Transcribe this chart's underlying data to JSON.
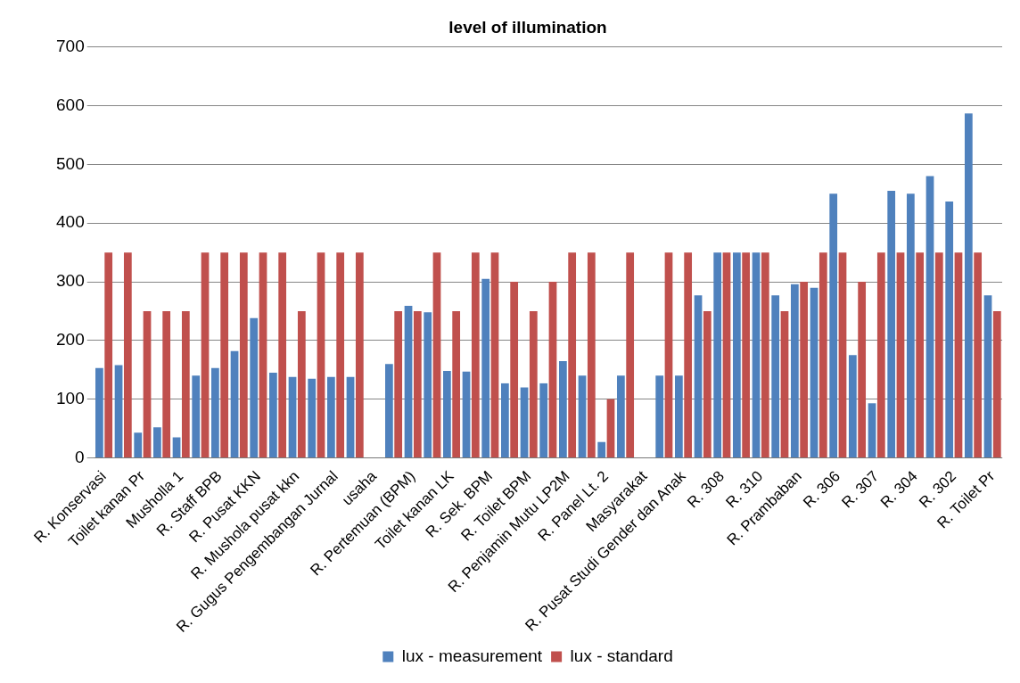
{
  "chart_data": {
    "type": "bar",
    "title": "level of illumination",
    "categories": [
      "R. Konservasi",
      null,
      "Toilet kanan Pr",
      null,
      "Musholla 1",
      null,
      "R. Staff BPB",
      null,
      "R. Pusat KKN",
      null,
      "R. Mushola pusat kkn",
      null,
      "R. Gugus Pengembangan Jurnal",
      null,
      "usaha",
      null,
      "R. Pertemuan (BPM)",
      null,
      "Toilet kanan LK",
      null,
      "R. Sek. BPM",
      null,
      "R. Toilet BPM",
      null,
      "R. Penjamin Mutu LP2M",
      null,
      "R. Panel Lt. 2",
      null,
      "Masyarakat",
      null,
      "R. Pusat Studi Gender dan Anak",
      null,
      "R. 308",
      null,
      "R. 310",
      null,
      "R. Prambaban",
      null,
      "R. 306",
      null,
      "R. 307",
      null,
      "R. 304",
      null,
      "R. 302",
      null,
      "R. Toilet Pr"
    ],
    "series": [
      {
        "name": "lux - measurement",
        "color": "#4f81bd",
        "values": [
          153,
          158,
          43,
          52,
          35,
          140,
          153,
          182,
          238,
          145,
          138,
          135,
          138,
          138,
          null,
          160,
          259,
          248,
          148,
          147,
          305,
          127,
          120,
          127,
          165,
          140,
          27,
          140,
          null,
          140,
          140,
          277,
          350,
          350,
          350,
          277,
          296,
          290,
          450,
          175,
          93,
          455,
          450,
          480,
          437,
          587,
          277
        ]
      },
      {
        "name": "lux - standard",
        "color": "#c0504d",
        "values": [
          350,
          350,
          250,
          250,
          250,
          350,
          350,
          350,
          350,
          350,
          250,
          350,
          350,
          350,
          null,
          250,
          250,
          350,
          250,
          350,
          350,
          300,
          250,
          300,
          350,
          350,
          100,
          350,
          null,
          350,
          350,
          250,
          350,
          350,
          350,
          250,
          300,
          350,
          350,
          300,
          350,
          350,
          350,
          350,
          350,
          350,
          250
        ]
      }
    ],
    "ylim": [
      0,
      700
    ],
    "yticks": [
      0,
      100,
      200,
      300,
      400,
      500,
      600,
      700
    ],
    "grid": "y",
    "legend": "bottom"
  }
}
